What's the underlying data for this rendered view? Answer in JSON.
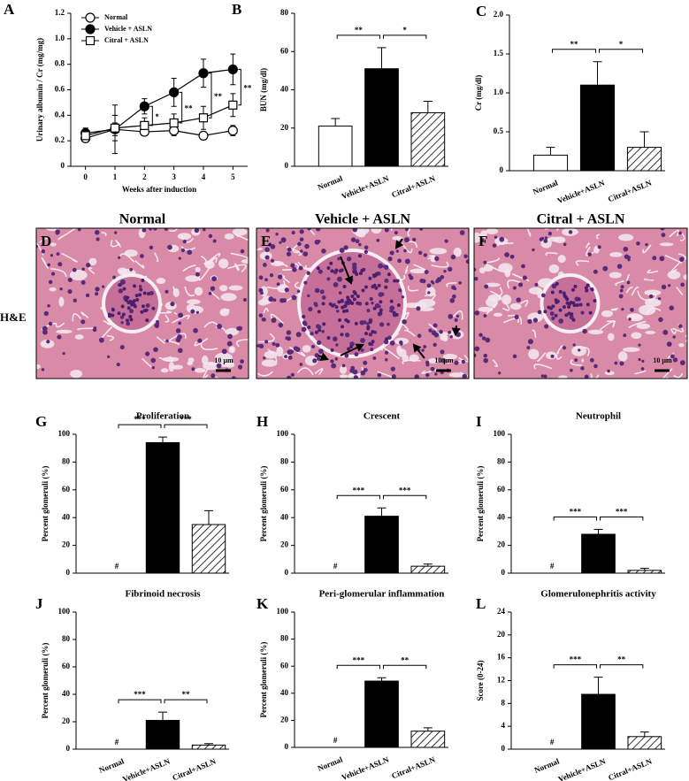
{
  "chart_data": [
    {
      "panel": "A",
      "type": "line",
      "x_label": "Weeks after induction",
      "y_label": "Urinary albumin / Cr (mg/mg)",
      "x": [
        0,
        1,
        2,
        3,
        4,
        5
      ],
      "xlim": [
        -0.5,
        5.5
      ],
      "xticks": [
        0,
        1,
        2,
        3,
        4,
        5
      ],
      "ylim": [
        0,
        1.2
      ],
      "yticks": [
        0,
        0.2,
        0.4,
        0.6,
        0.8,
        {
          "value": 1.0,
          "label": "1.0"
        },
        1.2
      ],
      "legend": "top-left",
      "compare_series": [
        1,
        2
      ],
      "series": [
        {
          "name": "Normal",
          "color": "#000000",
          "marker": "open-circle",
          "values": [
            0.22,
            0.29,
            0.27,
            0.28,
            0.24,
            0.28
          ],
          "errors": [
            0.03,
            0.05,
            0.03,
            0.04,
            0.03,
            0.04
          ]
        },
        {
          "name": "Vehicle + ASLN",
          "color": "#000000",
          "marker": "filled-circle",
          "values": [
            0.26,
            0.29,
            0.47,
            0.58,
            0.73,
            0.76
          ],
          "errors": [
            0.04,
            0.19,
            0.06,
            0.11,
            0.11,
            0.12
          ]
        },
        {
          "name": "Citral + ASLN",
          "color": "#000000",
          "marker": "open-square",
          "values": [
            0.24,
            0.3,
            0.32,
            0.34,
            0.38,
            0.48
          ],
          "errors": [
            0.03,
            0.1,
            0.06,
            0.07,
            0.09,
            0.09
          ]
        }
      ],
      "comparisons": [
        {
          "x": 2,
          "label": "*"
        },
        {
          "x": 3,
          "label": "**"
        },
        {
          "x": 4,
          "label": "**"
        },
        {
          "x": 5,
          "label": "**"
        }
      ]
    },
    {
      "panel": "B",
      "type": "bar",
      "y_label": "BUN (mg/dl)",
      "categories": [
        "Normal",
        "Vehicle+ASLN",
        "Citral+ASLN"
      ],
      "values": [
        21,
        51,
        28
      ],
      "errors": [
        4,
        11,
        6
      ],
      "colors": [
        "#ffffff",
        "#000000",
        "#ffffff"
      ],
      "hatch": [
        false,
        false,
        true
      ],
      "ylim": [
        0,
        80
      ],
      "yticks": [
        0,
        20,
        40,
        60,
        80
      ],
      "comparisons": [
        {
          "pair": [
            0,
            1
          ],
          "label": "**"
        },
        {
          "pair": [
            1,
            2
          ],
          "label": "*"
        }
      ]
    },
    {
      "panel": "C",
      "type": "bar",
      "y_label": "Cr (mg/dl)",
      "categories": [
        "Normal",
        "Vehicle+ASLN",
        "Citral+ASLN"
      ],
      "values": [
        0.2,
        1.1,
        0.3
      ],
      "errors": [
        0.1,
        0.3,
        0.2
      ],
      "colors": [
        "#ffffff",
        "#000000",
        "#ffffff"
      ],
      "hatch": [
        false,
        false,
        true
      ],
      "ylim": [
        0,
        2.0
      ],
      "yticks": [
        0,
        0.5,
        {
          "value": 1.0,
          "label": "1.0"
        },
        1.5,
        {
          "value": 2.0,
          "label": "2.0"
        }
      ],
      "comparisons": [
        {
          "pair": [
            0,
            1
          ],
          "label": "**"
        },
        {
          "pair": [
            1,
            2
          ],
          "label": "*"
        }
      ]
    },
    {
      "panel": "G",
      "type": "bar",
      "title": "Proliferation",
      "y_label": "Percent glomeruli (%)",
      "values": [
        0,
        94,
        35
      ],
      "errors": [
        null,
        4,
        10
      ],
      "value_labels": [
        "#",
        null,
        null
      ],
      "colors": [
        "#ffffff",
        "#000000",
        "#ffffff"
      ],
      "hatch": [
        false,
        false,
        true
      ],
      "ylim": [
        0,
        100
      ],
      "yticks": [
        0,
        20,
        40,
        60,
        80,
        100
      ],
      "comparisons": [
        {
          "pair": [
            0,
            1
          ],
          "label": "***"
        },
        {
          "pair": [
            1,
            2
          ],
          "label": "***"
        }
      ]
    },
    {
      "panel": "H",
      "type": "bar",
      "title": "Crescent",
      "y_label": "Percent glomeruli (%)",
      "values": [
        0,
        41,
        5
      ],
      "errors": [
        null,
        6,
        1.5
      ],
      "value_labels": [
        "#",
        null,
        null
      ],
      "colors": [
        "#ffffff",
        "#000000",
        "#ffffff"
      ],
      "hatch": [
        false,
        false,
        true
      ],
      "ylim": [
        0,
        100
      ],
      "yticks": [
        0,
        20,
        40,
        60,
        80,
        100
      ],
      "comparisons": [
        {
          "pair": [
            0,
            1
          ],
          "label": "***"
        },
        {
          "pair": [
            1,
            2
          ],
          "label": "***"
        }
      ]
    },
    {
      "panel": "I",
      "type": "bar",
      "title": "Neutrophil",
      "y_label": "Percent glomeruli (%)",
      "values": [
        0,
        28,
        2
      ],
      "errors": [
        null,
        3.5,
        1.5
      ],
      "value_labels": [
        "#",
        null,
        null
      ],
      "colors": [
        "#ffffff",
        "#000000",
        "#ffffff"
      ],
      "hatch": [
        false,
        false,
        true
      ],
      "ylim": [
        0,
        100
      ],
      "yticks": [
        0,
        20,
        40,
        60,
        80,
        100
      ],
      "comparisons": [
        {
          "pair": [
            0,
            1
          ],
          "label": "***"
        },
        {
          "pair": [
            1,
            2
          ],
          "label": "***"
        }
      ]
    },
    {
      "panel": "J",
      "type": "bar",
      "title": "Fibrinoid necrosis",
      "y_label": "Percent glomeruli (%)",
      "categories": [
        "Normal",
        "Vehicle+ASLN",
        "Citral+ASLN"
      ],
      "values": [
        0,
        21,
        3
      ],
      "errors": [
        null,
        6,
        1
      ],
      "value_labels": [
        "#",
        null,
        null
      ],
      "colors": [
        "#ffffff",
        "#000000",
        "#ffffff"
      ],
      "hatch": [
        false,
        false,
        true
      ],
      "ylim": [
        0,
        100
      ],
      "yticks": [
        0,
        20,
        40,
        60,
        80,
        100
      ],
      "comparisons": [
        {
          "pair": [
            0,
            1
          ],
          "label": "***"
        },
        {
          "pair": [
            1,
            2
          ],
          "label": "**"
        }
      ]
    },
    {
      "panel": "K",
      "type": "bar",
      "title": "Peri-glomerular inflammation",
      "y_label": "Percent glomeruli (%)",
      "categories": [
        "Normal",
        "Vehicle+ASLN",
        "Citral+ASLN"
      ],
      "values": [
        0,
        49,
        12
      ],
      "errors": [
        null,
        2.5,
        2.5
      ],
      "value_labels": [
        "#",
        null,
        null
      ],
      "colors": [
        "#ffffff",
        "#000000",
        "#ffffff"
      ],
      "hatch": [
        false,
        false,
        true
      ],
      "ylim": [
        0,
        100
      ],
      "yticks": [
        0,
        20,
        40,
        60,
        80,
        100
      ],
      "comparisons": [
        {
          "pair": [
            0,
            1
          ],
          "label": "***"
        },
        {
          "pair": [
            1,
            2
          ],
          "label": "**"
        }
      ]
    },
    {
      "panel": "L",
      "type": "bar",
      "title": "Glomerulonephritis activity",
      "y_label": "Score (0-24)",
      "categories": [
        "Normal",
        "Vehicle+ASLN",
        "Citral+ASLN"
      ],
      "values": [
        0,
        9.6,
        2.2
      ],
      "errors": [
        null,
        3,
        0.8
      ],
      "value_labels": [
        "#",
        null,
        null
      ],
      "colors": [
        "#ffffff",
        "#000000",
        "#ffffff"
      ],
      "hatch": [
        false,
        false,
        true
      ],
      "ylim": [
        0,
        24
      ],
      "yticks": [
        0,
        4,
        8,
        12,
        16,
        20,
        24
      ],
      "comparisons": [
        {
          "pair": [
            0,
            1
          ],
          "label": "***"
        },
        {
          "pair": [
            1,
            2
          ],
          "label": "**"
        }
      ]
    }
  ],
  "histology": {
    "stain": "H&E",
    "scale_bar": "10 µm",
    "panels": [
      {
        "panel": "D",
        "title": "Normal"
      },
      {
        "panel": "E",
        "title": "Vehicle + ASLN"
      },
      {
        "panel": "F",
        "title": "Citral + ASLN"
      }
    ]
  }
}
